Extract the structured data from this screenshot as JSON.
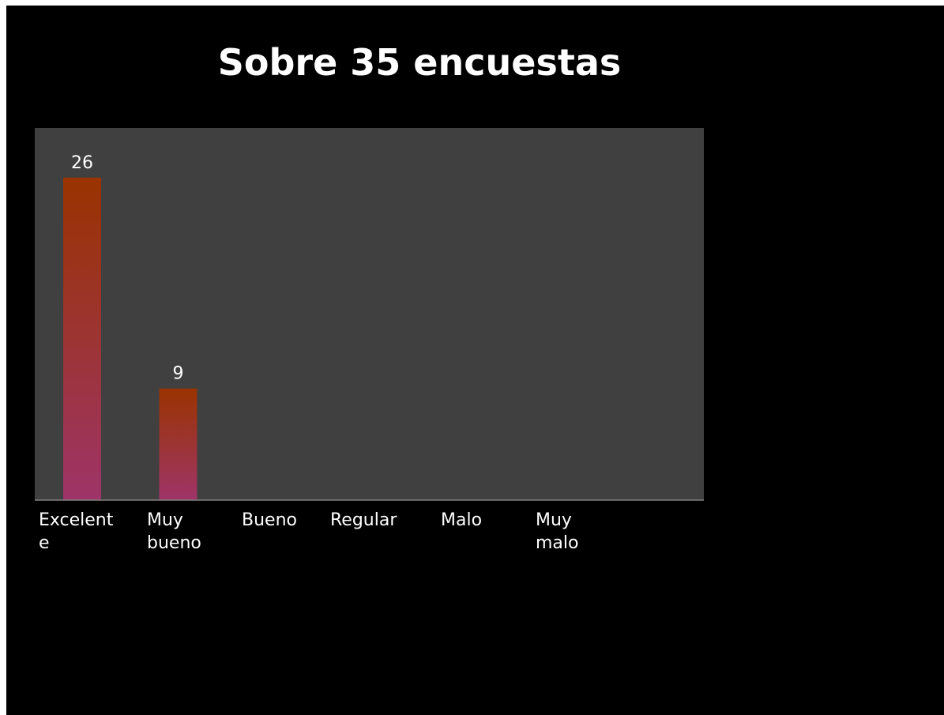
{
  "chart_data": {
    "type": "bar",
    "title": "Sobre 35 encuestas",
    "categories": [
      [
        "Excelent",
        "e"
      ],
      [
        "Muy",
        "bueno"
      ],
      [
        "Bueno"
      ],
      [
        "Regular"
      ],
      [
        "Malo"
      ],
      [
        "Muy",
        "malo"
      ]
    ],
    "values": [
      26,
      9,
      0,
      0,
      0,
      0
    ],
    "data_labels": [
      "26",
      "9",
      "",
      "",
      "",
      ""
    ],
    "ylim": [
      0,
      30
    ],
    "grid": false,
    "legend": "none",
    "colors": {
      "slide_background": "#000000",
      "plot_background": "#404040",
      "bar_top": "#9a3300",
      "bar_bottom": "#9e3468",
      "axis_line": "#808080",
      "text": "#ffffff"
    }
  }
}
